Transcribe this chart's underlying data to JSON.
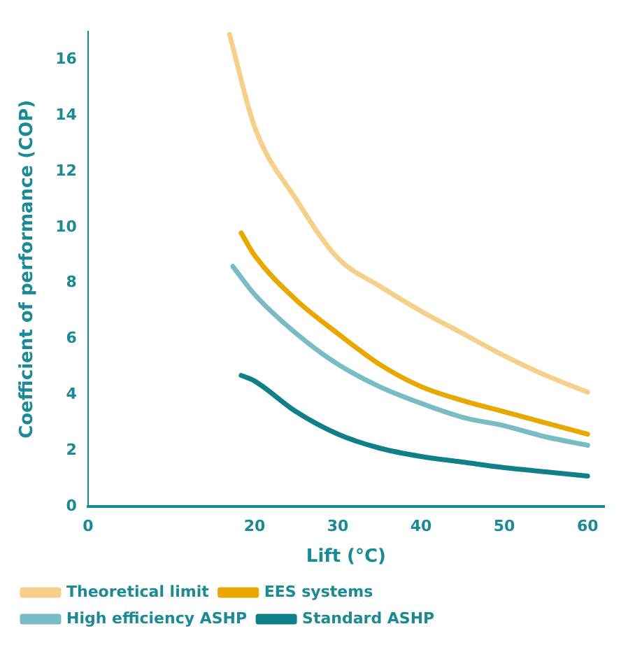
{
  "chart_data": {
    "type": "line",
    "xlabel": "Lift (°C)",
    "ylabel": "Coefficient of performance (COP)",
    "xlim": [
      0,
      62
    ],
    "xticks": [
      0,
      20,
      30,
      40,
      50,
      60
    ],
    "ylim": [
      0,
      17
    ],
    "yticks": [
      0,
      2,
      4,
      6,
      8,
      10,
      12,
      14,
      16
    ],
    "grid": false,
    "legend": "bottom",
    "marker": "none",
    "series": [
      {
        "name": "Theoretical limit",
        "color": "#f5d08a",
        "x": [
          17,
          20,
          25,
          30,
          35,
          40,
          45,
          50,
          55,
          60
        ],
        "values": [
          16.9,
          13.6,
          11,
          8.9,
          7.9,
          7,
          6.2,
          5.4,
          4.7,
          4.1
        ]
      },
      {
        "name": "EES systems",
        "color": "#e8a800",
        "x": [
          18.4,
          20,
          25,
          30,
          35,
          40,
          45,
          50,
          55,
          60
        ],
        "values": [
          9.8,
          9,
          7.4,
          6.2,
          5.1,
          4.3,
          3.8,
          3.4,
          3,
          2.6
        ]
      },
      {
        "name": "High efficiency ASHP",
        "color": "#78bcc4",
        "x": [
          17.4,
          20,
          25,
          30,
          35,
          40,
          45,
          50,
          55,
          60
        ],
        "values": [
          8.6,
          7.6,
          6.2,
          5.1,
          4.3,
          3.7,
          3.2,
          2.9,
          2.5,
          2.2
        ]
      },
      {
        "name": "Standard ASHP",
        "color": "#0f7f8a",
        "x": [
          18.4,
          20,
          25,
          30,
          35,
          40,
          45,
          50,
          55,
          60
        ],
        "values": [
          4.7,
          4.5,
          3.4,
          2.6,
          2.1,
          1.8,
          1.6,
          1.4,
          1.25,
          1.1
        ]
      }
    ]
  }
}
